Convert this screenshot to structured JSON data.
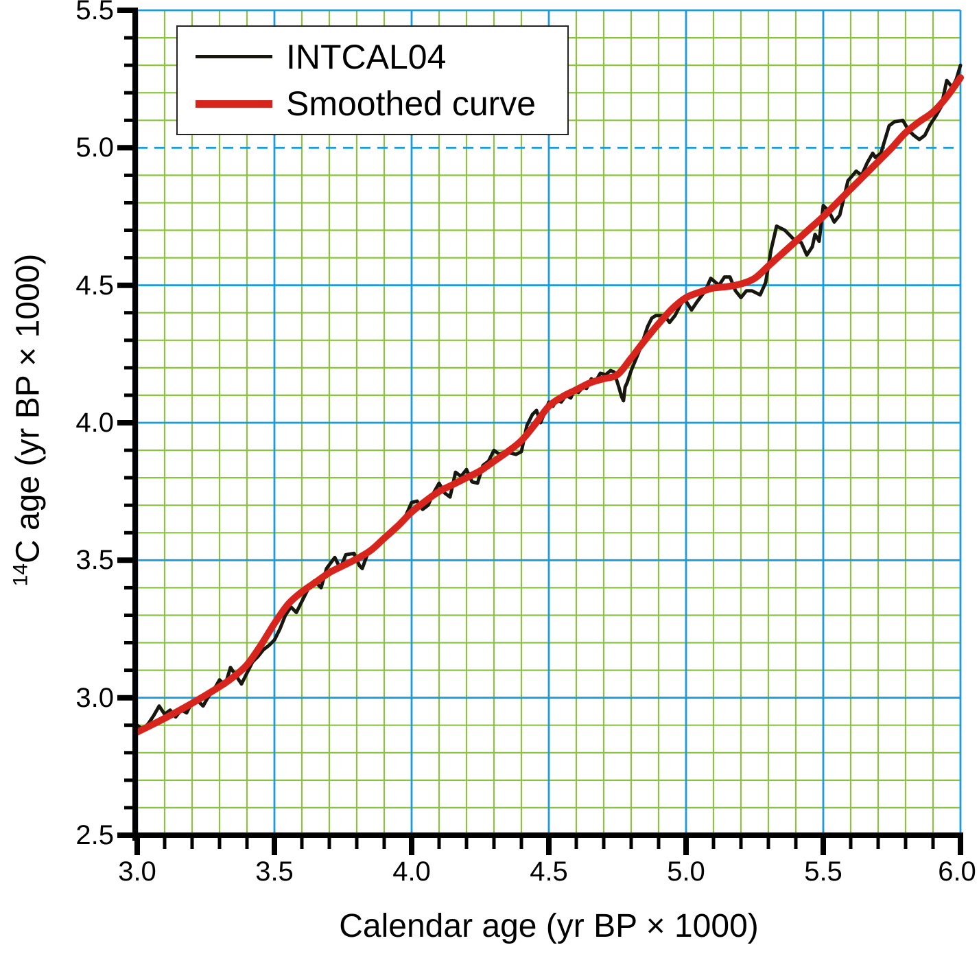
{
  "figure": {
    "background": "#ffffff"
  },
  "chart_data": {
    "type": "line",
    "title": "",
    "xlabel": "Calendar age (yr BP × 1000)",
    "ylabel": "14C age (yr BP × 1000)",
    "ylabel_sup": "14",
    "ylabel_rest": "C age (yr BP × 1000)",
    "xlim": [
      3.0,
      6.0
    ],
    "ylim": [
      2.5,
      5.5
    ],
    "x_ticks_major": [
      3.0,
      3.5,
      4.0,
      4.5,
      5.0,
      5.5,
      6.0
    ],
    "y_ticks_major": [
      2.5,
      3.0,
      3.5,
      4.0,
      4.5,
      5.0,
      5.5
    ],
    "x_tick_labels": [
      "3.0",
      "3.5",
      "4.0",
      "4.5",
      "5.0",
      "5.5",
      "6.0"
    ],
    "y_tick_labels": [
      "2.5",
      "3.0",
      "3.5",
      "4.0",
      "4.5",
      "5.0",
      "5.5"
    ],
    "grid": {
      "on": true,
      "minor_step": 0.1,
      "major_step": 0.5,
      "minor_color": "#8ac43e",
      "major_color": "#1d9bd7",
      "dashed_major_y": 5.0,
      "spine_color": "#000000"
    },
    "legend": {
      "position": "top-left",
      "entries": [
        {
          "label": "INTCAL04",
          "color": "#17170f",
          "line_width": 5
        },
        {
          "label": "Smoothed curve",
          "color": "#d7251d",
          "line_width": 11
        }
      ]
    },
    "series": [
      {
        "name": "INTCAL04",
        "color": "#17170f",
        "width": 5,
        "points": [
          [
            3.0,
            2.9
          ],
          [
            3.02,
            2.885
          ],
          [
            3.04,
            2.905
          ],
          [
            3.06,
            2.935
          ],
          [
            3.08,
            2.97
          ],
          [
            3.1,
            2.94
          ],
          [
            3.12,
            2.955
          ],
          [
            3.14,
            2.93
          ],
          [
            3.16,
            2.955
          ],
          [
            3.18,
            2.945
          ],
          [
            3.2,
            2.985
          ],
          [
            3.22,
            2.99
          ],
          [
            3.24,
            2.97
          ],
          [
            3.26,
            3.005
          ],
          [
            3.28,
            3.03
          ],
          [
            3.3,
            3.065
          ],
          [
            3.32,
            3.045
          ],
          [
            3.34,
            3.11
          ],
          [
            3.36,
            3.08
          ],
          [
            3.38,
            3.05
          ],
          [
            3.4,
            3.09
          ],
          [
            3.42,
            3.13
          ],
          [
            3.44,
            3.15
          ],
          [
            3.46,
            3.175
          ],
          [
            3.48,
            3.19
          ],
          [
            3.5,
            3.21
          ],
          [
            3.52,
            3.25
          ],
          [
            3.54,
            3.3
          ],
          [
            3.56,
            3.33
          ],
          [
            3.58,
            3.31
          ],
          [
            3.6,
            3.35
          ],
          [
            3.63,
            3.41
          ],
          [
            3.645,
            3.425
          ],
          [
            3.67,
            3.4
          ],
          [
            3.69,
            3.47
          ],
          [
            3.72,
            3.51
          ],
          [
            3.74,
            3.47
          ],
          [
            3.76,
            3.52
          ],
          [
            3.79,
            3.525
          ],
          [
            3.81,
            3.48
          ],
          [
            3.82,
            3.47
          ],
          [
            3.84,
            3.525
          ],
          [
            3.875,
            3.55
          ],
          [
            3.9,
            3.575
          ],
          [
            3.92,
            3.6
          ],
          [
            3.94,
            3.615
          ],
          [
            3.96,
            3.635
          ],
          [
            3.98,
            3.665
          ],
          [
            4.0,
            3.71
          ],
          [
            4.02,
            3.715
          ],
          [
            4.04,
            3.685
          ],
          [
            4.06,
            3.7
          ],
          [
            4.08,
            3.745
          ],
          [
            4.1,
            3.78
          ],
          [
            4.12,
            3.745
          ],
          [
            4.14,
            3.73
          ],
          [
            4.16,
            3.82
          ],
          [
            4.18,
            3.805
          ],
          [
            4.2,
            3.83
          ],
          [
            4.22,
            3.785
          ],
          [
            4.24,
            3.78
          ],
          [
            4.26,
            3.845
          ],
          [
            4.28,
            3.86
          ],
          [
            4.3,
            3.9
          ],
          [
            4.32,
            3.885
          ],
          [
            4.34,
            3.895
          ],
          [
            4.36,
            3.89
          ],
          [
            4.38,
            3.885
          ],
          [
            4.4,
            3.895
          ],
          [
            4.42,
            3.99
          ],
          [
            4.44,
            4.03
          ],
          [
            4.455,
            4.045
          ],
          [
            4.47,
            4.0
          ],
          [
            4.49,
            4.05
          ],
          [
            4.5,
            4.075
          ],
          [
            4.515,
            4.06
          ],
          [
            4.53,
            4.085
          ],
          [
            4.545,
            4.075
          ],
          [
            4.5625,
            4.1
          ],
          [
            4.58,
            4.09
          ],
          [
            4.595,
            4.125
          ],
          [
            4.6075,
            4.11
          ],
          [
            4.625,
            4.13
          ],
          [
            4.6375,
            4.125
          ],
          [
            4.655,
            4.16
          ],
          [
            4.6675,
            4.145
          ],
          [
            4.6875,
            4.18
          ],
          [
            4.7075,
            4.175
          ],
          [
            4.725,
            4.19
          ],
          [
            4.7375,
            4.185
          ],
          [
            4.755,
            4.13
          ],
          [
            4.765,
            4.095
          ],
          [
            4.772,
            4.08
          ],
          [
            4.778,
            4.13
          ],
          [
            4.785,
            4.145
          ],
          [
            4.8,
            4.19
          ],
          [
            4.8125,
            4.22
          ],
          [
            4.825,
            4.25
          ],
          [
            4.84,
            4.29
          ],
          [
            4.86,
            4.35
          ],
          [
            4.875,
            4.38
          ],
          [
            4.89,
            4.39
          ],
          [
            4.92,
            4.39
          ],
          [
            4.94,
            4.365
          ],
          [
            4.96,
            4.39
          ],
          [
            4.98,
            4.43
          ],
          [
            4.995,
            4.45
          ],
          [
            5.02,
            4.41
          ],
          [
            5.04,
            4.44
          ],
          [
            5.07,
            4.48
          ],
          [
            5.09,
            4.525
          ],
          [
            5.12,
            4.5
          ],
          [
            5.14,
            4.53
          ],
          [
            5.16,
            4.53
          ],
          [
            5.18,
            4.48
          ],
          [
            5.2,
            4.455
          ],
          [
            5.22,
            4.48
          ],
          [
            5.24,
            4.48
          ],
          [
            5.27,
            4.465
          ],
          [
            5.29,
            4.51
          ],
          [
            5.31,
            4.63
          ],
          [
            5.33,
            4.715
          ],
          [
            5.36,
            4.7
          ],
          [
            5.39,
            4.67
          ],
          [
            5.42,
            4.655
          ],
          [
            5.44,
            4.61
          ],
          [
            5.46,
            4.64
          ],
          [
            5.47,
            4.685
          ],
          [
            5.485,
            4.66
          ],
          [
            5.5,
            4.79
          ],
          [
            5.52,
            4.77
          ],
          [
            5.54,
            4.73
          ],
          [
            5.56,
            4.755
          ],
          [
            5.59,
            4.88
          ],
          [
            5.62,
            4.915
          ],
          [
            5.64,
            4.9
          ],
          [
            5.66,
            4.945
          ],
          [
            5.68,
            4.98
          ],
          [
            5.69,
            4.965
          ],
          [
            5.71,
            4.98
          ],
          [
            5.74,
            5.08
          ],
          [
            5.76,
            5.095
          ],
          [
            5.79,
            5.1
          ],
          [
            5.81,
            5.065
          ],
          [
            5.83,
            5.045
          ],
          [
            5.85,
            5.03
          ],
          [
            5.87,
            5.045
          ],
          [
            5.89,
            5.085
          ],
          [
            5.91,
            5.115
          ],
          [
            5.93,
            5.15
          ],
          [
            5.95,
            5.245
          ],
          [
            5.97,
            5.22
          ],
          [
            5.985,
            5.25
          ],
          [
            6.0,
            5.3
          ]
        ]
      },
      {
        "name": "Smoothed curve",
        "color": "#d7251d",
        "width": 10,
        "points": [
          [
            3.0,
            2.875
          ],
          [
            3.1,
            2.925
          ],
          [
            3.2,
            2.98
          ],
          [
            3.3,
            3.04
          ],
          [
            3.35,
            3.075
          ],
          [
            3.4,
            3.12
          ],
          [
            3.45,
            3.19
          ],
          [
            3.5,
            3.27
          ],
          [
            3.55,
            3.34
          ],
          [
            3.6,
            3.385
          ],
          [
            3.65,
            3.42
          ],
          [
            3.7,
            3.455
          ],
          [
            3.75,
            3.48
          ],
          [
            3.8,
            3.505
          ],
          [
            3.85,
            3.535
          ],
          [
            3.9,
            3.58
          ],
          [
            3.95,
            3.625
          ],
          [
            4.0,
            3.675
          ],
          [
            4.05,
            3.715
          ],
          [
            4.1,
            3.75
          ],
          [
            4.15,
            3.775
          ],
          [
            4.2,
            3.8
          ],
          [
            4.25,
            3.825
          ],
          [
            4.3,
            3.86
          ],
          [
            4.35,
            3.895
          ],
          [
            4.4,
            3.935
          ],
          [
            4.45,
            3.995
          ],
          [
            4.5,
            4.06
          ],
          [
            4.55,
            4.095
          ],
          [
            4.6,
            4.12
          ],
          [
            4.65,
            4.145
          ],
          [
            4.7,
            4.16
          ],
          [
            4.75,
            4.175
          ],
          [
            4.8,
            4.235
          ],
          [
            4.85,
            4.3
          ],
          [
            4.9,
            4.36
          ],
          [
            4.95,
            4.415
          ],
          [
            5.0,
            4.455
          ],
          [
            5.05,
            4.475
          ],
          [
            5.1,
            4.49
          ],
          [
            5.15,
            4.495
          ],
          [
            5.2,
            4.505
          ],
          [
            5.25,
            4.525
          ],
          [
            5.3,
            4.57
          ],
          [
            5.35,
            4.615
          ],
          [
            5.4,
            4.66
          ],
          [
            5.45,
            4.705
          ],
          [
            5.5,
            4.75
          ],
          [
            5.55,
            4.8
          ],
          [
            5.6,
            4.85
          ],
          [
            5.65,
            4.9
          ],
          [
            5.7,
            4.95
          ],
          [
            5.75,
            5.0
          ],
          [
            5.8,
            5.055
          ],
          [
            5.85,
            5.095
          ],
          [
            5.9,
            5.13
          ],
          [
            5.95,
            5.185
          ],
          [
            6.0,
            5.255
          ]
        ]
      }
    ]
  }
}
